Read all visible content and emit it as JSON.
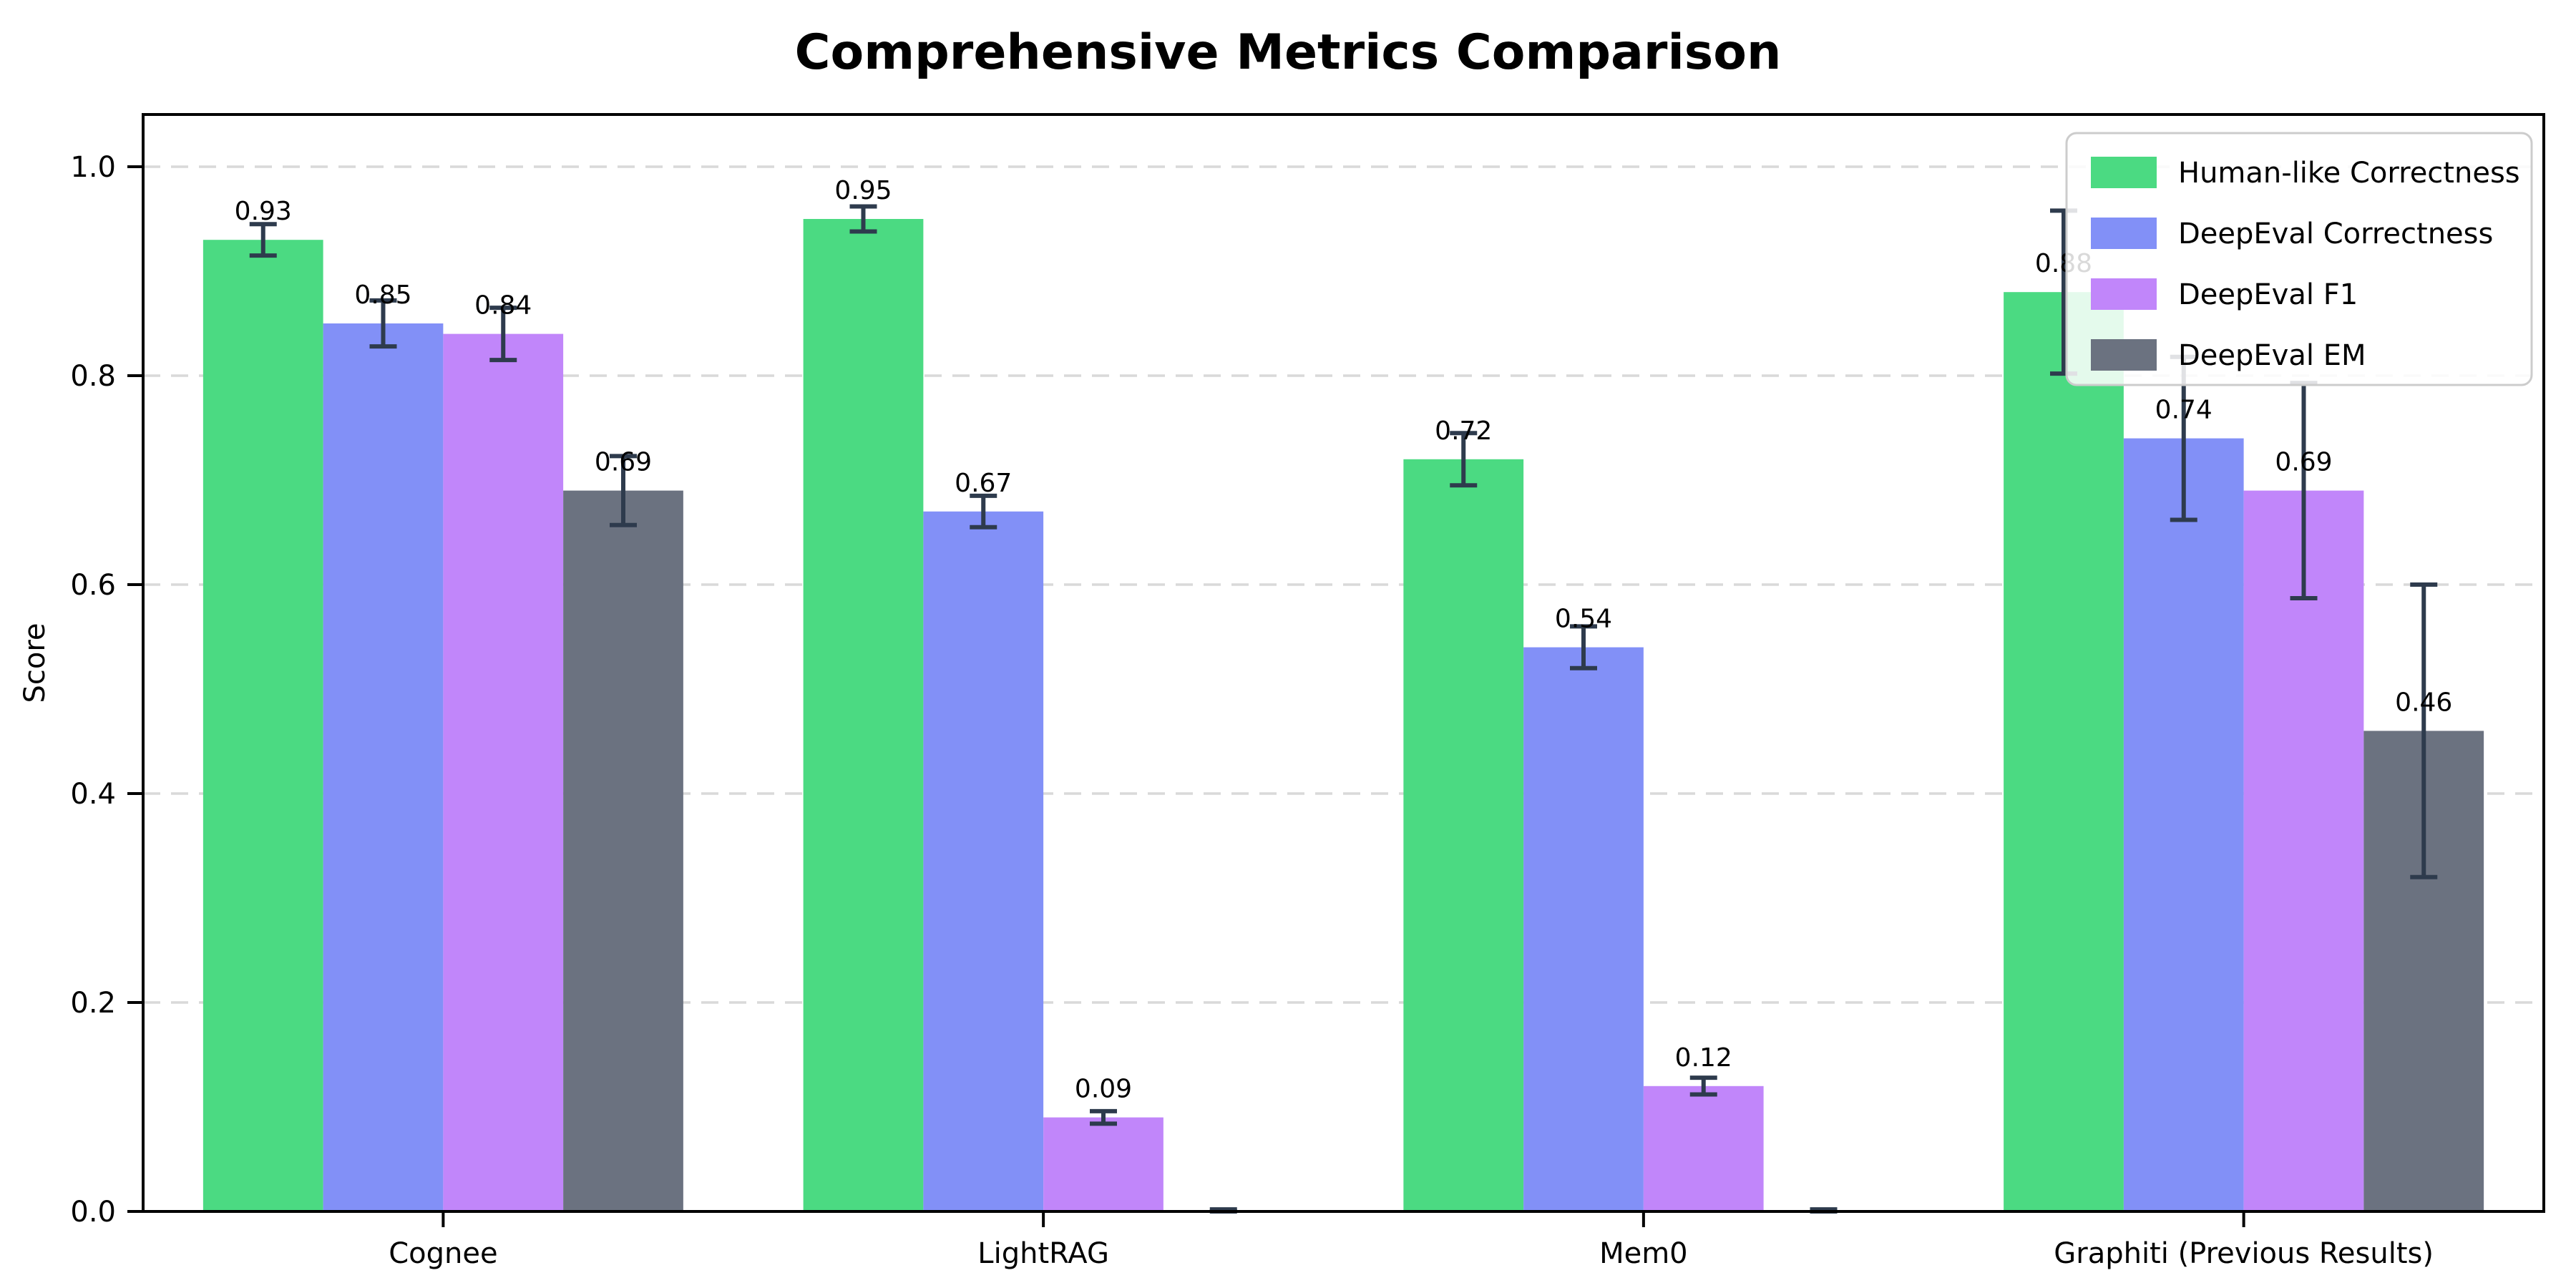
{
  "chart_data": {
    "type": "bar",
    "title": "Comprehensive Metrics Comparison",
    "xlabel": "",
    "ylabel": "Score",
    "categories": [
      "Cognee",
      "LightRAG",
      "Mem0",
      "Graphiti (Previous Results)"
    ],
    "series": [
      {
        "name": "Human-like Correctness",
        "color": "#4bda82",
        "values": [
          0.93,
          0.95,
          0.72,
          0.88
        ],
        "errors": [
          0.015,
          0.012,
          0.025,
          0.078
        ],
        "labels": [
          "0.93",
          "0.95",
          "0.72",
          "0.88"
        ]
      },
      {
        "name": "DeepEval Correctness",
        "color": "#8290f7",
        "values": [
          0.85,
          0.67,
          0.54,
          0.74
        ],
        "errors": [
          0.022,
          0.015,
          0.02,
          0.078
        ],
        "labels": [
          "0.85",
          "0.67",
          "0.54",
          "0.74"
        ]
      },
      {
        "name": "DeepEval F1",
        "color": "#c186fa",
        "values": [
          0.84,
          0.09,
          0.12,
          0.69
        ],
        "errors": [
          0.025,
          0.006,
          0.008,
          0.103
        ],
        "labels": [
          "0.84",
          "0.09",
          "0.12",
          "0.69"
        ]
      },
      {
        "name": "DeepEval EM",
        "color": "#6b7280",
        "values": [
          0.69,
          0.0,
          0.0,
          0.46
        ],
        "errors": [
          0.033,
          0.002,
          0.002,
          0.14
        ],
        "labels": [
          "0.69",
          "",
          "",
          "0.46"
        ]
      }
    ],
    "yticks": [
      0.0,
      0.2,
      0.4,
      0.6,
      0.8,
      1.0
    ],
    "ylim": [
      0,
      1.05
    ],
    "grid": "dashed-horizontal",
    "grid_color": "#d9d9d9",
    "legend_position": "upper right",
    "error_bar_color": "#2e3b4d",
    "axis_color": "#000000"
  }
}
